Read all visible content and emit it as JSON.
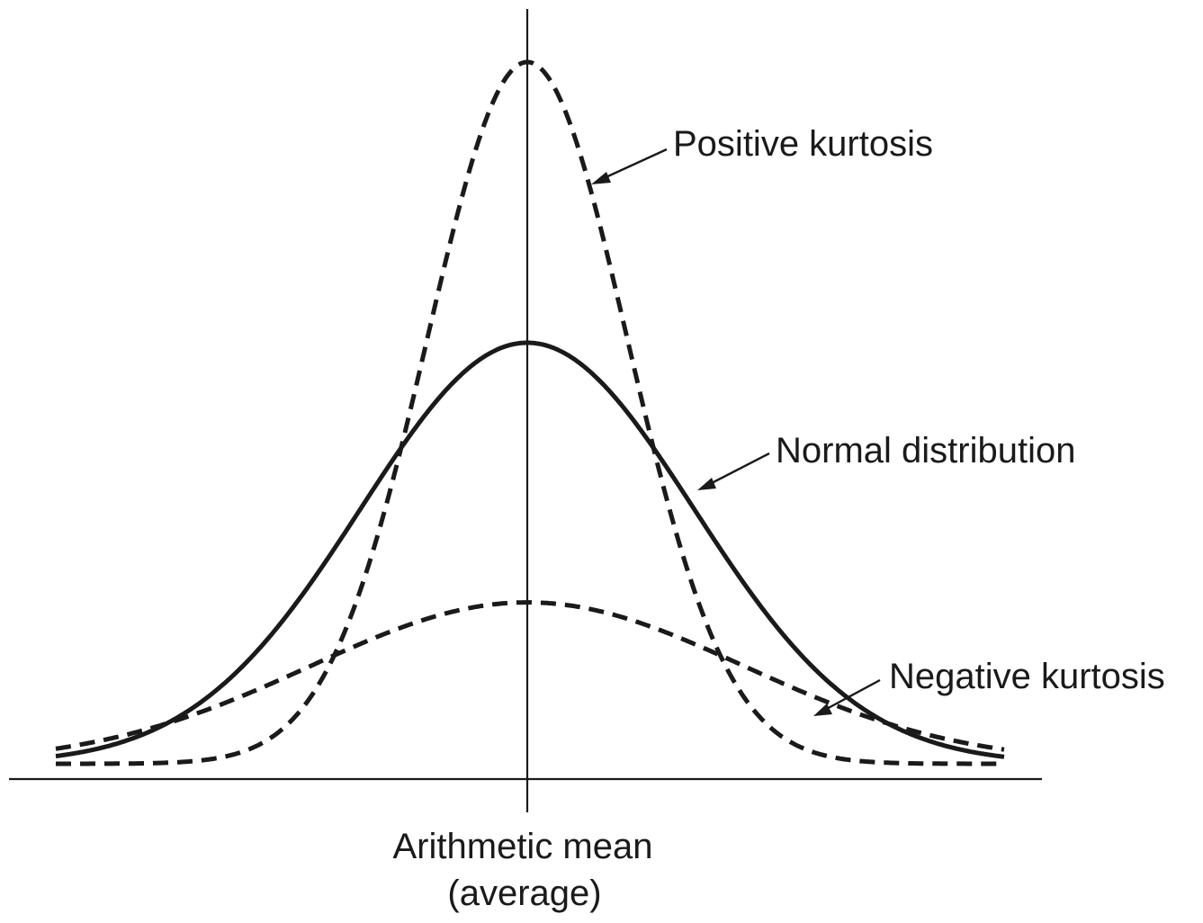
{
  "labels": {
    "positive": "Positive kurtosis",
    "normal": "Normal distribution",
    "negative": "Negative kurtosis",
    "mean_line1": "Arithmetic mean",
    "mean_line2": "(average)"
  },
  "curves": [
    {
      "id": "positive",
      "label": "Positive kurtosis",
      "style": "dashed",
      "relative_peak": 1.0,
      "spread": 0.6
    },
    {
      "id": "normal",
      "label": "Normal distribution",
      "style": "solid",
      "relative_peak": 0.6,
      "spread": 1.0
    },
    {
      "id": "negative",
      "label": "Negative kurtosis",
      "style": "dashed",
      "relative_peak": 0.23,
      "spread": 1.3
    }
  ],
  "colors": {
    "ink": "#1a1a1a",
    "background": "#ffffff"
  }
}
